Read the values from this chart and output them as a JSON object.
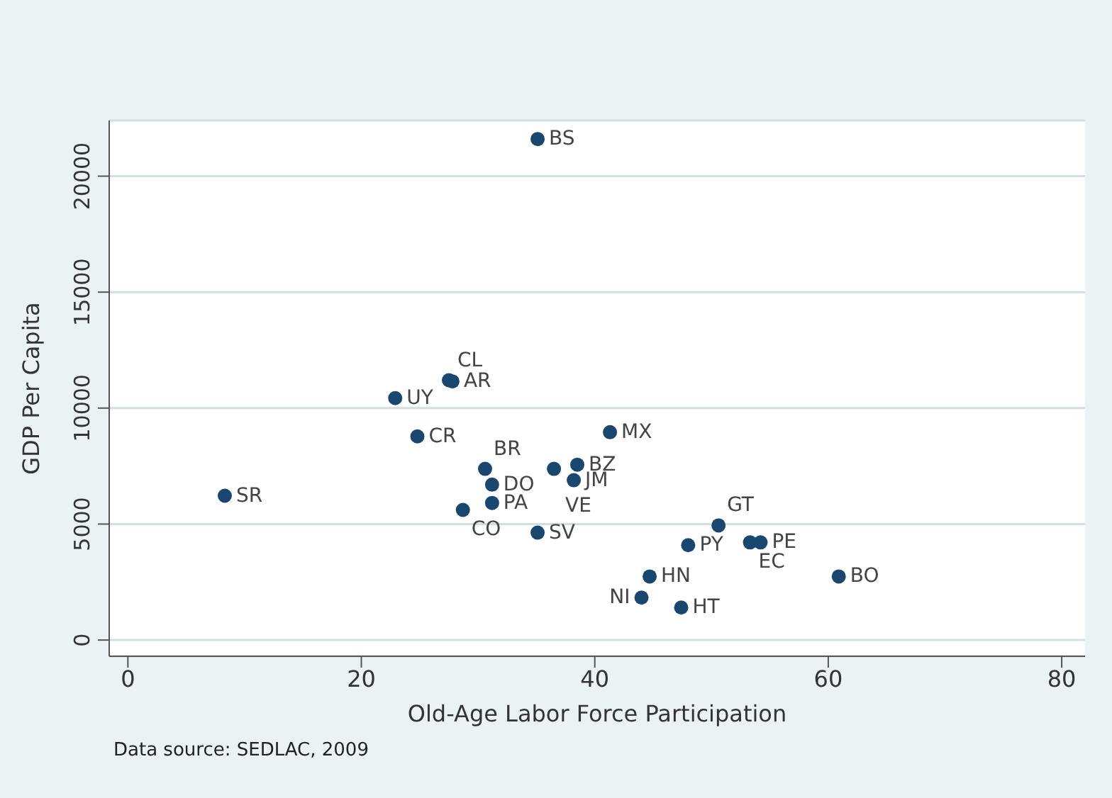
{
  "chart_data": {
    "type": "scatter",
    "xlabel": "Old-Age Labor Force Participation",
    "ylabel": "GDP Per Capita",
    "x": [
      35.1,
      27.5,
      27.8,
      22.9,
      24.8,
      41.3,
      30.6,
      36.5,
      38.5,
      38.2,
      31.2,
      31.2,
      28.7,
      35.1,
      8.3,
      50.6,
      48.0,
      53.3,
      54.2,
      44.7,
      44.0,
      47.4,
      60.9
    ],
    "series": [
      {
        "color": "#1a476f",
        "values": [
          21600,
          11200,
          11150,
          10430,
          8780,
          8960,
          7380,
          7380,
          7560,
          6890,
          6700,
          5910,
          5610,
          4630,
          6220,
          4940,
          4090,
          4210,
          4210,
          2740,
          1830,
          1400,
          2740
        ]
      }
    ],
    "xlim": [
      -1.6,
      82
    ],
    "ylim": [
      -700,
      22400
    ],
    "xticks": [
      0,
      20,
      40,
      60,
      80
    ],
    "yticks": [
      0,
      5000,
      10000,
      15000,
      20000
    ],
    "grid": "y",
    "marker": "circle",
    "legend": false,
    "annotations": [
      {
        "text": "BS",
        "x": 35.1,
        "y": 21600
      },
      {
        "text": "CL",
        "x": 27.5,
        "y": 11200
      },
      {
        "text": "AR",
        "x": 27.8,
        "y": 11150
      },
      {
        "text": "UY",
        "x": 22.9,
        "y": 10430
      },
      {
        "text": "CR",
        "x": 24.8,
        "y": 8780
      },
      {
        "text": "MX",
        "x": 41.3,
        "y": 8960
      },
      {
        "text": "BR",
        "x": 30.6,
        "y": 7380
      },
      {
        "text": "VE",
        "x": 36.5,
        "y": 7380
      },
      {
        "text": "BZ",
        "x": 38.5,
        "y": 7560
      },
      {
        "text": "JM",
        "x": 38.2,
        "y": 6890
      },
      {
        "text": "DO",
        "x": 31.2,
        "y": 6700
      },
      {
        "text": "PA",
        "x": 31.2,
        "y": 5910
      },
      {
        "text": "CO",
        "x": 28.7,
        "y": 5610
      },
      {
        "text": "SV",
        "x": 35.1,
        "y": 4630
      },
      {
        "text": "SR",
        "x": 8.3,
        "y": 6220
      },
      {
        "text": "GT",
        "x": 50.6,
        "y": 4940
      },
      {
        "text": "PY",
        "x": 48.0,
        "y": 4090
      },
      {
        "text": "EC",
        "x": 53.3,
        "y": 4210
      },
      {
        "text": "PE",
        "x": 54.2,
        "y": 4210
      },
      {
        "text": "HN",
        "x": 44.7,
        "y": 2740
      },
      {
        "text": "NI",
        "x": 44.0,
        "y": 1830
      },
      {
        "text": "HT",
        "x": 47.4,
        "y": 1400
      },
      {
        "text": "BO",
        "x": 60.9,
        "y": 2740
      },
      "Data source:  SEDLAC, 2009"
    ]
  }
}
